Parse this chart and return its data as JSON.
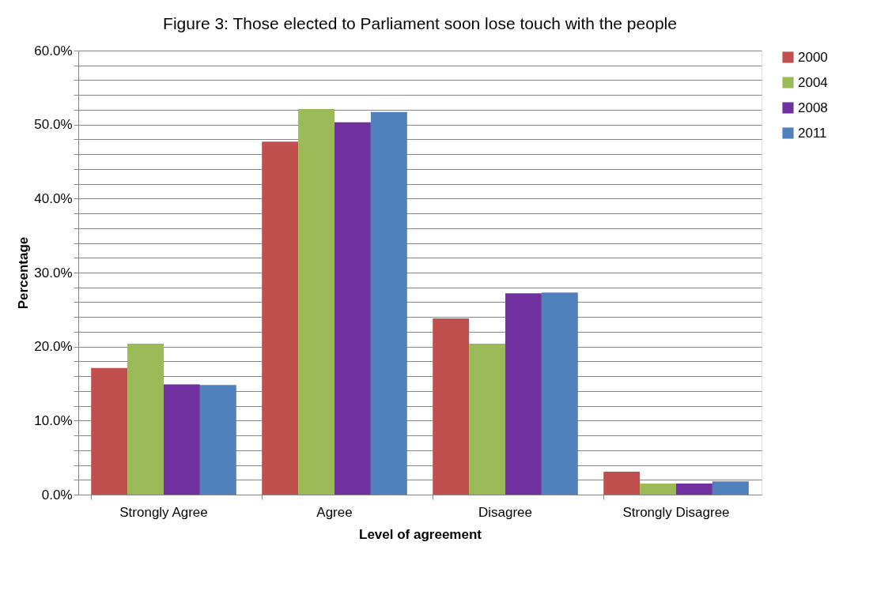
{
  "chart_data": {
    "type": "bar",
    "title": "Figure 3: Those elected to Parliament soon lose touch with the people",
    "xlabel": "Level of agreement",
    "ylabel": "Percentage",
    "categories": [
      "Strongly Agree",
      "Agree",
      "Disagree",
      "Strongly Disagree"
    ],
    "series": [
      {
        "name": "2000",
        "color": "#c0504d",
        "values": [
          17.1,
          47.7,
          23.8,
          3.1
        ]
      },
      {
        "name": "2004",
        "color": "#9bbb59",
        "values": [
          20.4,
          52.1,
          20.4,
          1.5
        ]
      },
      {
        "name": "2008",
        "color": "#7030a0",
        "values": [
          14.9,
          50.3,
          27.2,
          1.5
        ]
      },
      {
        "name": "2011",
        "color": "#4f81bd",
        "values": [
          14.8,
          51.7,
          27.3,
          1.8
        ]
      }
    ],
    "ylim": [
      0,
      60
    ],
    "yticks": [
      {
        "value": 0,
        "label": "0.0%"
      },
      {
        "value": 2,
        "label": null
      },
      {
        "value": 4,
        "label": null
      },
      {
        "value": 6,
        "label": null
      },
      {
        "value": 8,
        "label": null
      },
      {
        "value": 10,
        "label": "10.0%"
      },
      {
        "value": 12,
        "label": null
      },
      {
        "value": 14,
        "label": null
      },
      {
        "value": 16,
        "label": null
      },
      {
        "value": 18,
        "label": null
      },
      {
        "value": 20,
        "label": "20.0%"
      },
      {
        "value": 22,
        "label": null
      },
      {
        "value": 24,
        "label": null
      },
      {
        "value": 26,
        "label": null
      },
      {
        "value": 28,
        "label": null
      },
      {
        "value": 30,
        "label": "30.0%"
      },
      {
        "value": 32,
        "label": null
      },
      {
        "value": 34,
        "label": null
      },
      {
        "value": 36,
        "label": null
      },
      {
        "value": 38,
        "label": null
      },
      {
        "value": 40,
        "label": "40.0%"
      },
      {
        "value": 42,
        "label": null
      },
      {
        "value": 44,
        "label": null
      },
      {
        "value": 46,
        "label": null
      },
      {
        "value": 48,
        "label": null
      },
      {
        "value": 50,
        "label": "50.0%"
      },
      {
        "value": 52,
        "label": null
      },
      {
        "value": 54,
        "label": null
      },
      {
        "value": 56,
        "label": null
      },
      {
        "value": 58,
        "label": null
      },
      {
        "value": 60,
        "label": "60.0%"
      }
    ],
    "grid": "y",
    "legend": "right"
  }
}
